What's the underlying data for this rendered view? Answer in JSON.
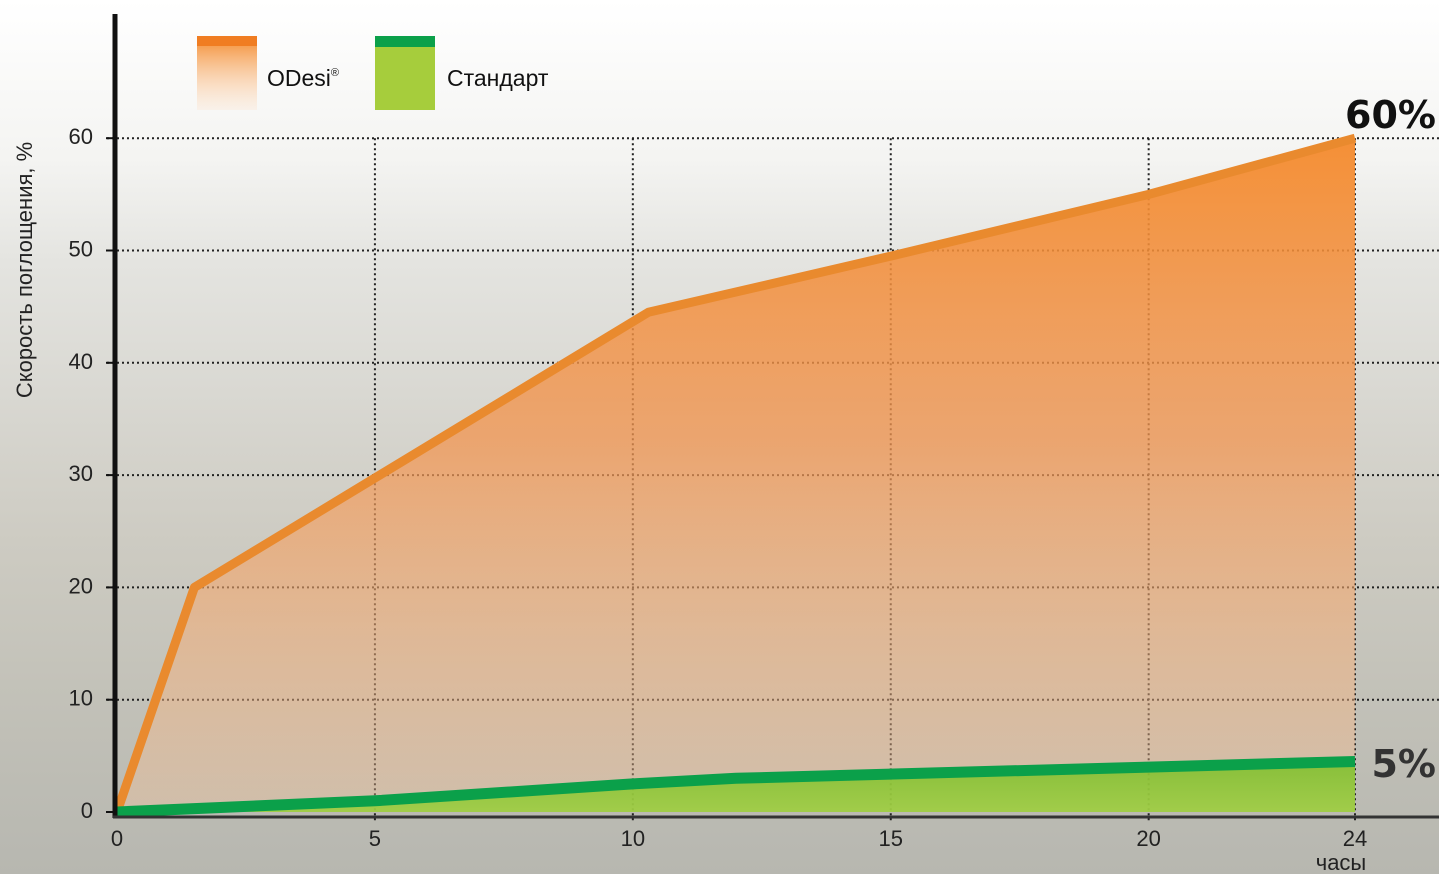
{
  "colors": {
    "odesi_line": "#e98a2e",
    "odesi_fill_top": "#f48a2c",
    "odesi_fill_bottom": "#f8c9a0",
    "standard_line": "#0ba04a",
    "standard_fill": "#8dc63f",
    "axis": "#111111",
    "grid": "#222222",
    "end_label_odesi": "#111111",
    "end_label_standard": "#333333"
  },
  "chart_data": {
    "type": "area",
    "ylabel": "Скорость поглощения, %",
    "xlabel": "часы",
    "xlim": [
      0,
      24
    ],
    "ylim": [
      0,
      70
    ],
    "x_ticks": [
      "0",
      "5",
      "10",
      "15",
      "20",
      "24"
    ],
    "y_ticks": [
      "0",
      "10",
      "20",
      "30",
      "40",
      "50",
      "60"
    ],
    "grid": "dotted",
    "legend_position": "top-left",
    "series": [
      {
        "name": "ODesi",
        "name_superscript": "®",
        "color": "#e98a2e",
        "points": [
          [
            0,
            0
          ],
          [
            1.5,
            20
          ],
          [
            10.3,
            44.5
          ],
          [
            15,
            49.5
          ],
          [
            20,
            55
          ],
          [
            24,
            60
          ]
        ],
        "end_label": "60%"
      },
      {
        "name": "Стандарт",
        "color": "#0ba04a",
        "points": [
          [
            0,
            0
          ],
          [
            5,
            1
          ],
          [
            10,
            2.5
          ],
          [
            12,
            3
          ],
          [
            20,
            4
          ],
          [
            24,
            4.5
          ]
        ],
        "end_label": "5%"
      }
    ]
  }
}
